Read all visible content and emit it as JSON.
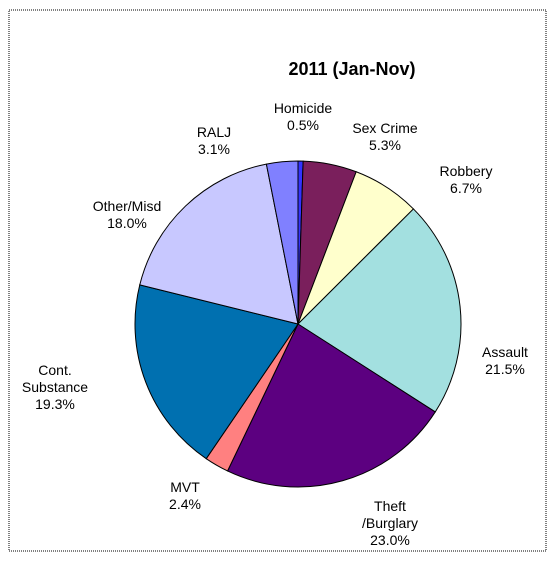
{
  "chart_data": {
    "type": "pie",
    "title": "2011 (Jan-Nov)",
    "slices": [
      {
        "label": "Homicide",
        "value": 0.5,
        "value_label": "0.5%",
        "color": "#3333ff"
      },
      {
        "label": "Sex Crime",
        "value": 5.3,
        "value_label": "5.3%",
        "color": "#7a1f5c"
      },
      {
        "label": "Robbery",
        "value": 6.7,
        "value_label": "6.7%",
        "color": "#ffffcc"
      },
      {
        "label": "Assault",
        "value": 21.5,
        "value_label": "21.5%",
        "color": "#a3e0e0"
      },
      {
        "label": "Theft /Burglary",
        "value": 23.0,
        "value_label": "23.0%",
        "color": "#5c0080"
      },
      {
        "label": "MVT",
        "value": 2.4,
        "value_label": "2.4%",
        "color": "#ff8080"
      },
      {
        "label": "Cont. Substance",
        "value": 19.3,
        "value_label": "19.3%",
        "color": "#0070b0"
      },
      {
        "label": "Other/Misd",
        "value": 18.0,
        "value_label": "18.0%",
        "color": "#c8c8ff"
      },
      {
        "label": "RALJ",
        "value": 3.1,
        "value_label": "3.1%",
        "color": "#8080ff"
      }
    ]
  }
}
